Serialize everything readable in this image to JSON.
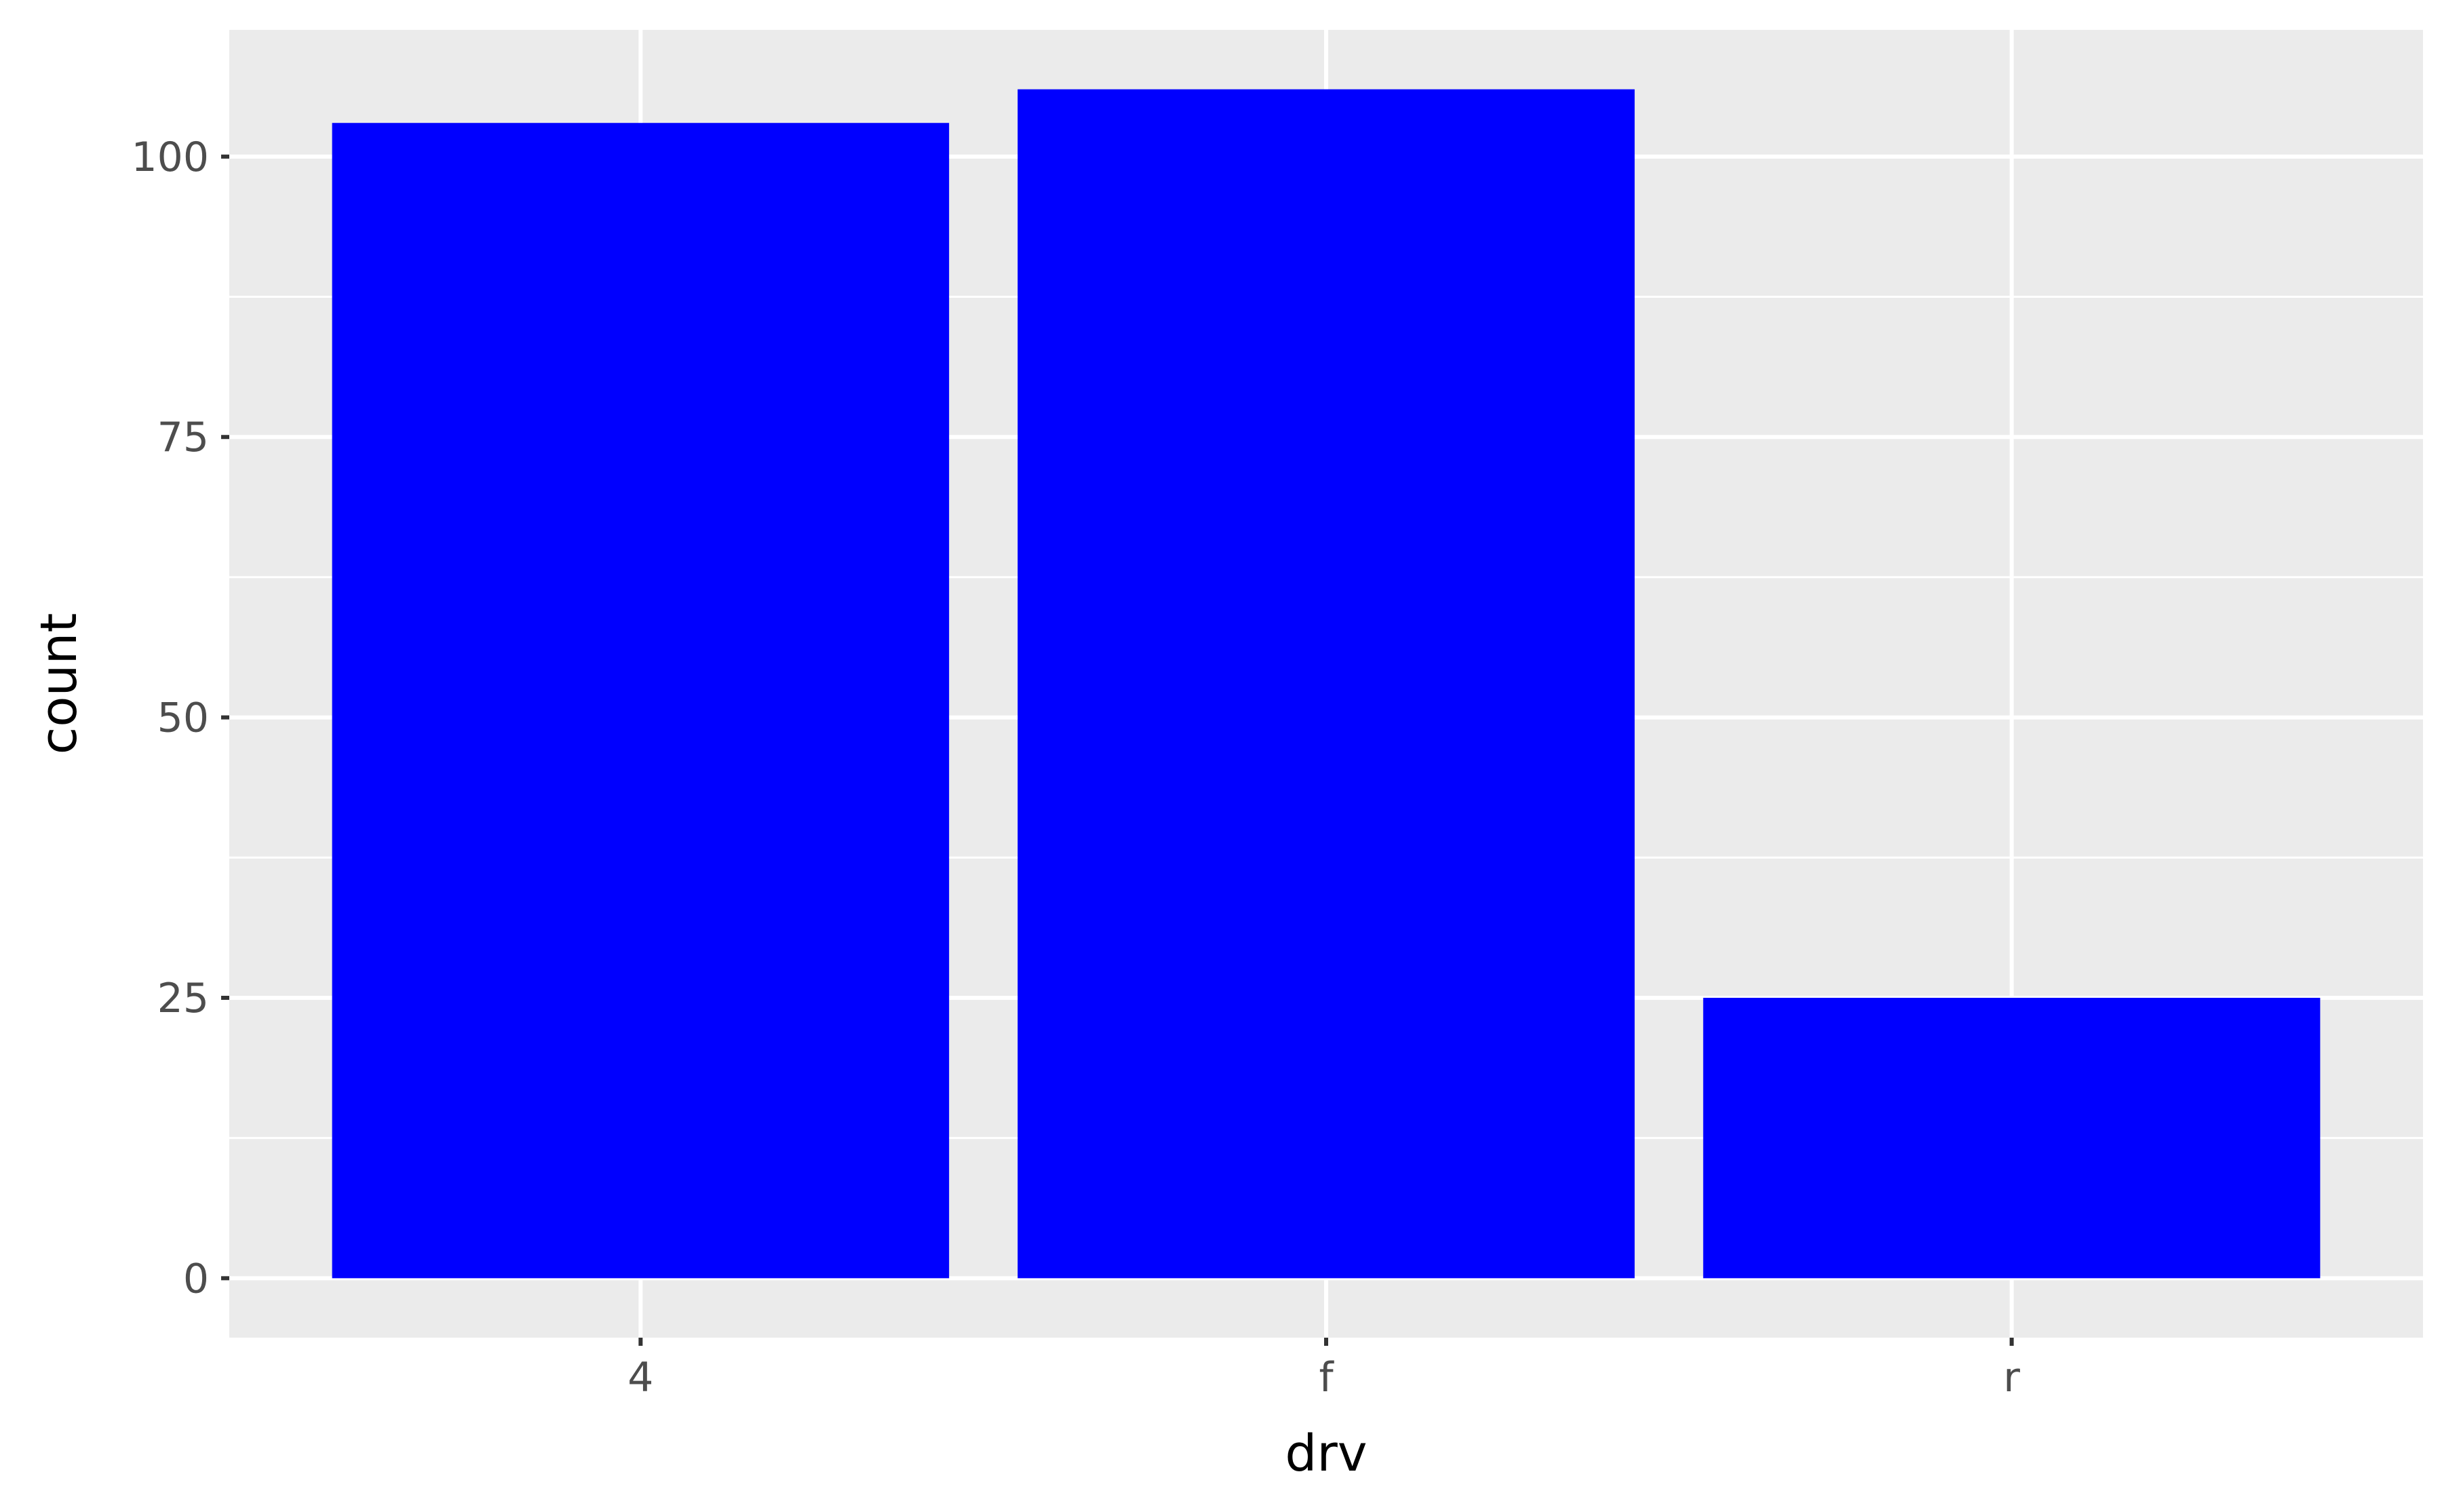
{
  "chart_data": {
    "type": "bar",
    "categories": [
      "4",
      "f",
      "r"
    ],
    "values": [
      103,
      106,
      25
    ],
    "xlabel": "drv",
    "ylabel": "count",
    "ylim": [
      -5.3,
      111.3
    ],
    "yticks": [
      0,
      25,
      50,
      75,
      100
    ],
    "ytick_labels": [
      "0",
      "25",
      "50",
      "75",
      "100"
    ],
    "grid": true,
    "legend": "none",
    "colors": {
      "bar": "#0000FF",
      "panel_background": "#EBEBEB",
      "grid": "#FFFFFF",
      "tick_label": "#4D4D4D",
      "axis_title": "#000000"
    }
  }
}
